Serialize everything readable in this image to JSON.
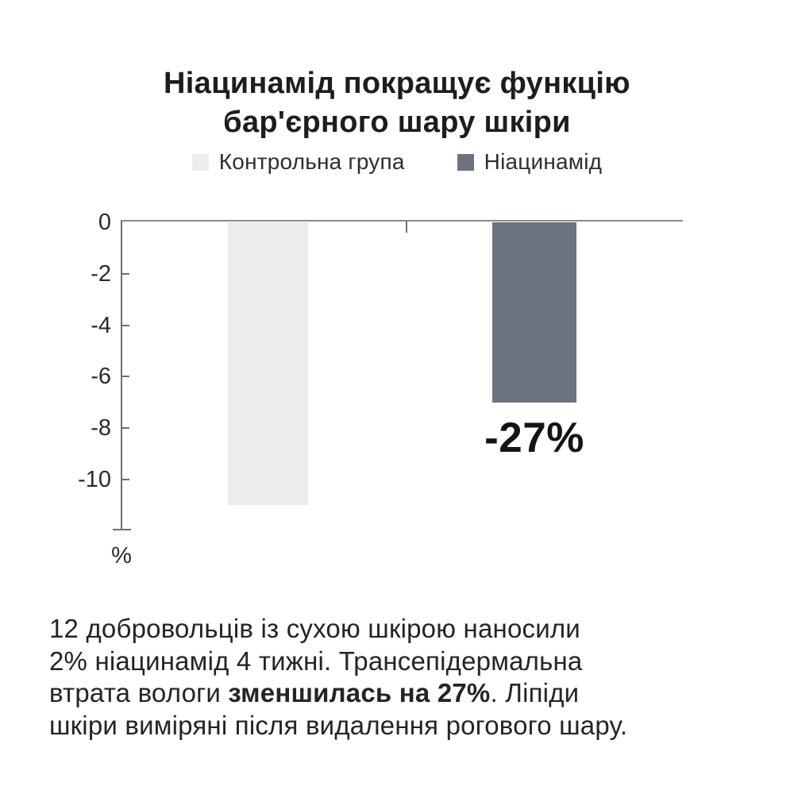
{
  "header": {
    "title_lines": [
      "Ніацинамід покращує функцію",
      "бар'єрного шару шкіри"
    ]
  },
  "legend": {
    "items": [
      {
        "label": "Контрольна група",
        "color": "#ececec"
      },
      {
        "label": "Ніацинамід",
        "color": "#6d7280"
      }
    ]
  },
  "chart_data": {
    "type": "bar",
    "title": "Ніацинамід покращує функцію бар'єрного шару шкіри",
    "categories": [
      "Контрольна група",
      "Ніацинамід"
    ],
    "series": [
      {
        "name": "Контрольна група",
        "value": -11,
        "color": "#ececec",
        "annotation": ""
      },
      {
        "name": "Ніацинамід",
        "value": -7,
        "color": "#6d7280",
        "annotation": "-27%"
      }
    ],
    "xlabel": "",
    "ylabel": "%",
    "yticks": [
      0,
      -2,
      -4,
      -6,
      -8,
      -10
    ],
    "ylim": [
      -12,
      0
    ],
    "grid": false,
    "legend_position": "top",
    "annotation": "-27%"
  },
  "footnote": {
    "lines": [
      {
        "before": "12 добровольців із сухою шкірою наносили",
        "bold": "",
        "after": ""
      },
      {
        "before": "2% ніацинамід 4 тижні. Трансепідермальна",
        "bold": "",
        "after": ""
      },
      {
        "before": "втрата вологи ",
        "bold": "зменшилась на 27%",
        "after": ". Ліпіди"
      },
      {
        "before": "шкіри виміряні після видалення рогового шару.",
        "bold": "",
        "after": ""
      }
    ]
  }
}
